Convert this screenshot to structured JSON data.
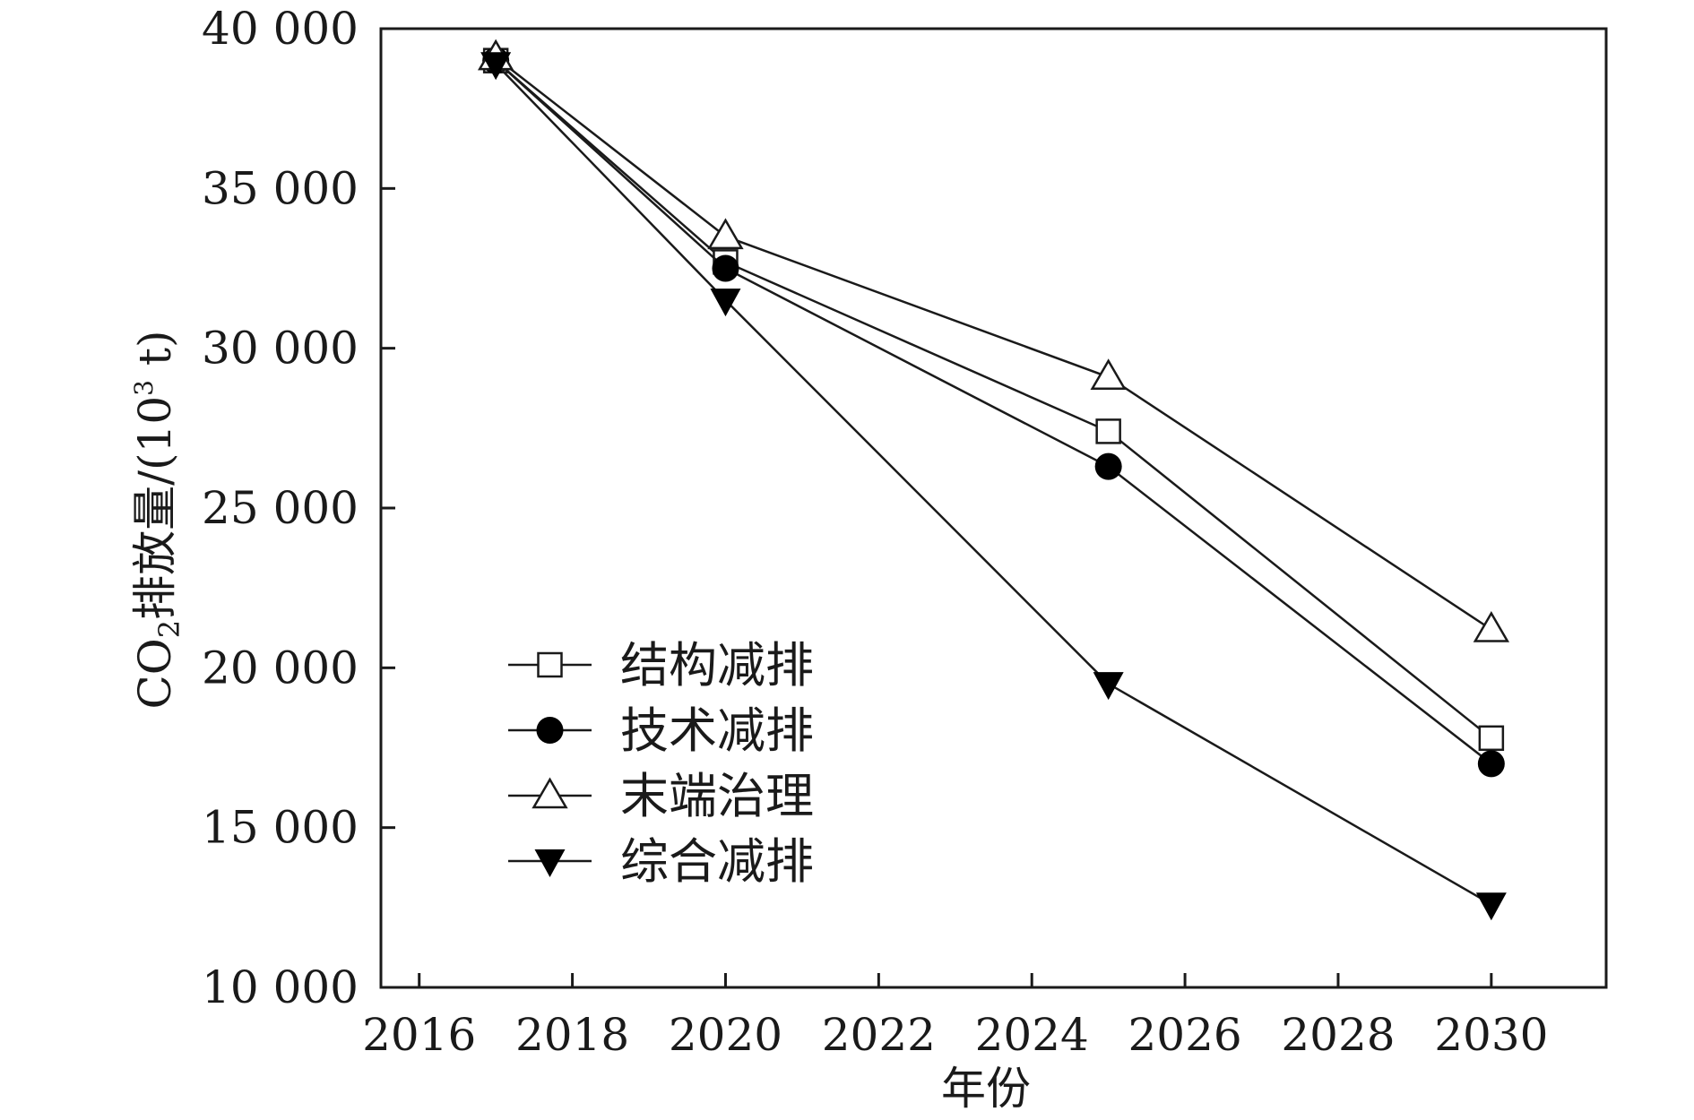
{
  "chart_data": {
    "type": "line",
    "xlabel": "年份",
    "ylabel_main": "CO",
    "ylabel_sub": "2",
    "ylabel_rest": "排放量/(10",
    "ylabel_sup": "3",
    "ylabel_tail": " t)",
    "xlim": [
      2015.5,
      2031.5
    ],
    "ylim": [
      10000,
      40000
    ],
    "xticks": [
      2016,
      2018,
      2020,
      2022,
      2024,
      2026,
      2028,
      2030
    ],
    "xtick_labels": [
      "2016",
      "2018",
      "2020",
      "2022",
      "2024",
      "2026",
      "2028",
      "2030"
    ],
    "yticks": [
      10000,
      15000,
      20000,
      25000,
      30000,
      35000,
      40000
    ],
    "ytick_labels": [
      "10 000",
      "15 000",
      "20 000",
      "25 000",
      "30 000",
      "35 000",
      "40 000"
    ],
    "grid": false,
    "legend_position": "left-center",
    "x": [
      2017,
      2020,
      2025,
      2030
    ],
    "series": [
      {
        "name": "结构减排",
        "marker": "open-square",
        "values": [
          39000,
          32700,
          27400,
          17800
        ]
      },
      {
        "name": "技术减排",
        "marker": "filled-circle",
        "values": [
          39000,
          32500,
          26300,
          17000
        ]
      },
      {
        "name": "末端治理",
        "marker": "open-triangle-up",
        "values": [
          39100,
          33500,
          29100,
          21200
        ]
      },
      {
        "name": "综合减排",
        "marker": "filled-triangle-down",
        "values": [
          38900,
          31500,
          19500,
          12600
        ]
      }
    ]
  }
}
